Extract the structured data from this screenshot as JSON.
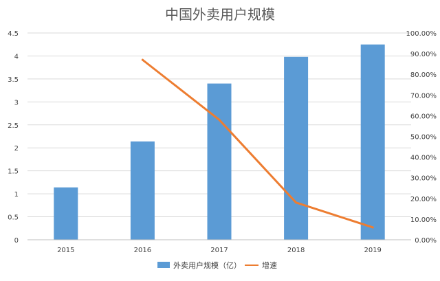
{
  "chart_data": {
    "type": "bar",
    "title": "中国外卖用户规模",
    "categories": [
      "2015",
      "2016",
      "2017",
      "2018",
      "2019"
    ],
    "series": [
      {
        "name": "外卖用户规模（亿）",
        "type": "bar",
        "axis": "left",
        "values": [
          1.14,
          2.14,
          3.4,
          3.98,
          4.25
        ]
      },
      {
        "name": "增速",
        "type": "line",
        "axis": "right",
        "values": [
          null,
          0.87,
          0.58,
          0.18,
          0.06
        ]
      }
    ],
    "y_left": {
      "ylim": [
        0,
        4.5
      ],
      "ticks": [
        "0",
        "0.5",
        "1",
        "1.5",
        "2",
        "2.5",
        "3",
        "3.5",
        "4",
        "4.5"
      ]
    },
    "y_right": {
      "ylim": [
        0,
        1.0
      ],
      "ticks": [
        "0.00%",
        "10.00%",
        "20.00%",
        "30.00%",
        "40.00%",
        "50.00%",
        "60.00%",
        "70.00%",
        "80.00%",
        "90.00%",
        "100.00%"
      ]
    },
    "grid": true,
    "legend_position": "bottom",
    "colors": {
      "bar": "#5B9BD5",
      "line": "#ED7D31",
      "grid": "#D9D9D9",
      "axis": "#BFBFBF"
    }
  }
}
